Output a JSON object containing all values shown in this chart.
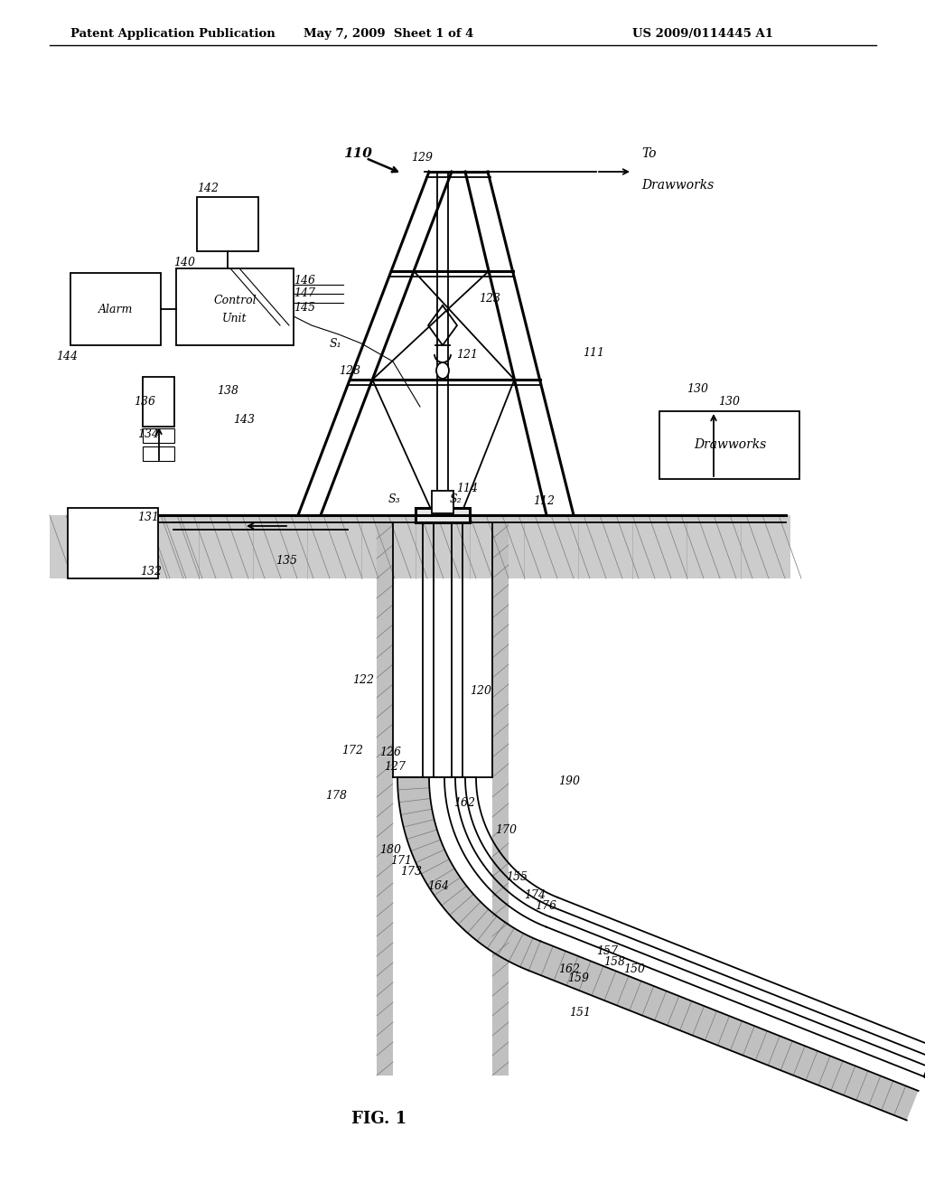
{
  "bg_color": "#ffffff",
  "header_left": "Patent Application Publication",
  "header_mid": "May 7, 2009  Sheet 1 of 4",
  "header_right": "US 2009/0114445 A1",
  "fig_label": "FIG. 1"
}
